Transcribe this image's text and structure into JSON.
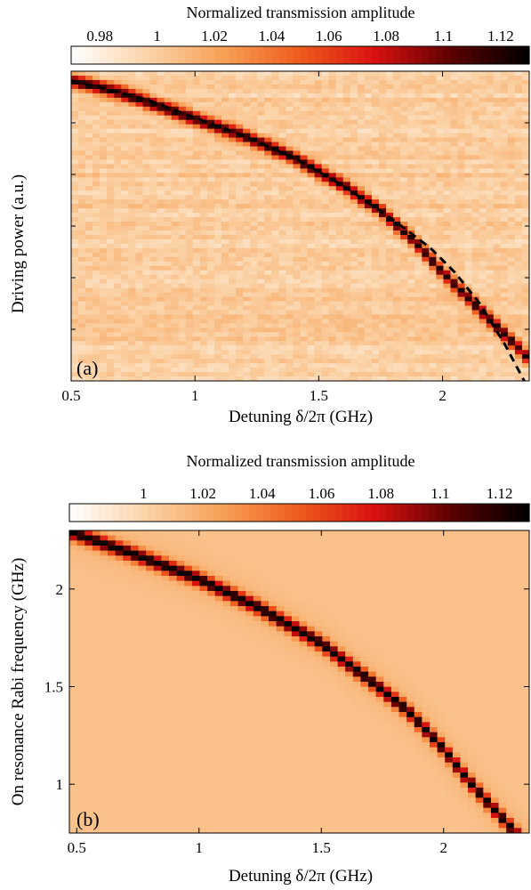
{
  "chart_data": [
    {
      "type": "heatmap",
      "panel_label": "(a)",
      "colorbar": {
        "title": "Normalized transmission amplitude",
        "ticks": [
          0.98,
          1,
          1.02,
          1.04,
          1.06,
          1.08,
          1.1,
          1.12
        ],
        "tick_labels": [
          "0.98",
          "1",
          "1.02",
          "1.04",
          "1.06",
          "1.08",
          "1.1",
          "1.12"
        ],
        "range": [
          0.97,
          1.13
        ],
        "colormap": [
          "#ffffff",
          "#fbd3a8",
          "#f7a055",
          "#ef5a1c",
          "#d81010",
          "#5a0000",
          "#000000"
        ]
      },
      "xlabel": "Detuning δ/2π (GHz)",
      "ylabel": "Driving power (a.u.)",
      "xlim": [
        0.5,
        2.35
      ],
      "x_ticks": [
        0.5,
        1,
        1.5,
        2
      ],
      "x_tick_labels": [
        "0.5",
        "1",
        "1.5",
        "2"
      ],
      "ylim": [
        0,
        1
      ],
      "y_tick_labels": [],
      "grid": false,
      "background_level": 1.0,
      "resonance_peak_level": 1.12,
      "resonance_points": [
        {
          "x": 0.5,
          "y": 0.97
        },
        {
          "x": 0.7,
          "y": 0.93
        },
        {
          "x": 0.95,
          "y": 0.86
        },
        {
          "x": 1.2,
          "y": 0.79
        },
        {
          "x": 1.4,
          "y": 0.72
        },
        {
          "x": 1.6,
          "y": 0.63
        },
        {
          "x": 1.75,
          "y": 0.55
        },
        {
          "x": 1.9,
          "y": 0.44
        },
        {
          "x": 2.0,
          "y": 0.35
        },
        {
          "x": 2.1,
          "y": 0.27
        }
      ],
      "fit_line": {
        "style": "dashed",
        "color": "#000000",
        "points": [
          {
            "x": 0.5,
            "y": 0.97
          },
          {
            "x": 0.8,
            "y": 0.91
          },
          {
            "x": 1.0,
            "y": 0.85
          },
          {
            "x": 1.2,
            "y": 0.79
          },
          {
            "x": 1.4,
            "y": 0.72
          },
          {
            "x": 1.6,
            "y": 0.63
          },
          {
            "x": 1.8,
            "y": 0.52
          },
          {
            "x": 1.95,
            "y": 0.43
          },
          {
            "x": 2.05,
            "y": 0.35
          },
          {
            "x": 2.15,
            "y": 0.25
          },
          {
            "x": 2.25,
            "y": 0.12
          },
          {
            "x": 2.33,
            "y": 0.0
          }
        ]
      }
    },
    {
      "type": "heatmap",
      "panel_label": "(b)",
      "colorbar": {
        "title": "Normalized transmission amplitude",
        "ticks": [
          1,
          1.02,
          1.04,
          1.06,
          1.08,
          1.1,
          1.12
        ],
        "tick_labels": [
          "1",
          "1.02",
          "1.04",
          "1.06",
          "1.08",
          "1.1",
          "1.12"
        ],
        "range": [
          0.975,
          1.13
        ],
        "colormap": [
          "#ffffff",
          "#fbd3a8",
          "#f7a055",
          "#ef5a1c",
          "#d81010",
          "#5a0000",
          "#000000"
        ]
      },
      "xlabel": "Detuning δ/2π (GHz)",
      "ylabel": "On resonance Rabi frequency (GHz)",
      "xlim": [
        0.47,
        2.35
      ],
      "x_ticks": [
        0.5,
        1,
        1.5,
        2
      ],
      "x_tick_labels": [
        "0.5",
        "1",
        "1.5",
        "2"
      ],
      "ylim": [
        0.75,
        2.3
      ],
      "y_ticks": [
        1,
        1.5,
        2
      ],
      "y_tick_labels": [
        "1",
        "1.5",
        "2"
      ],
      "grid": false,
      "background_level": 1.01,
      "resonance_peak_level": 1.125,
      "resonance_points": [
        {
          "x": 0.5,
          "y": 2.28
        },
        {
          "x": 0.75,
          "y": 2.17
        },
        {
          "x": 1.0,
          "y": 2.05
        },
        {
          "x": 1.25,
          "y": 1.9
        },
        {
          "x": 1.5,
          "y": 1.72
        },
        {
          "x": 1.7,
          "y": 1.53
        },
        {
          "x": 1.85,
          "y": 1.38
        },
        {
          "x": 2.0,
          "y": 1.18
        },
        {
          "x": 2.1,
          "y": 1.02
        },
        {
          "x": 2.2,
          "y": 0.88
        },
        {
          "x": 2.28,
          "y": 0.77
        }
      ]
    }
  ]
}
